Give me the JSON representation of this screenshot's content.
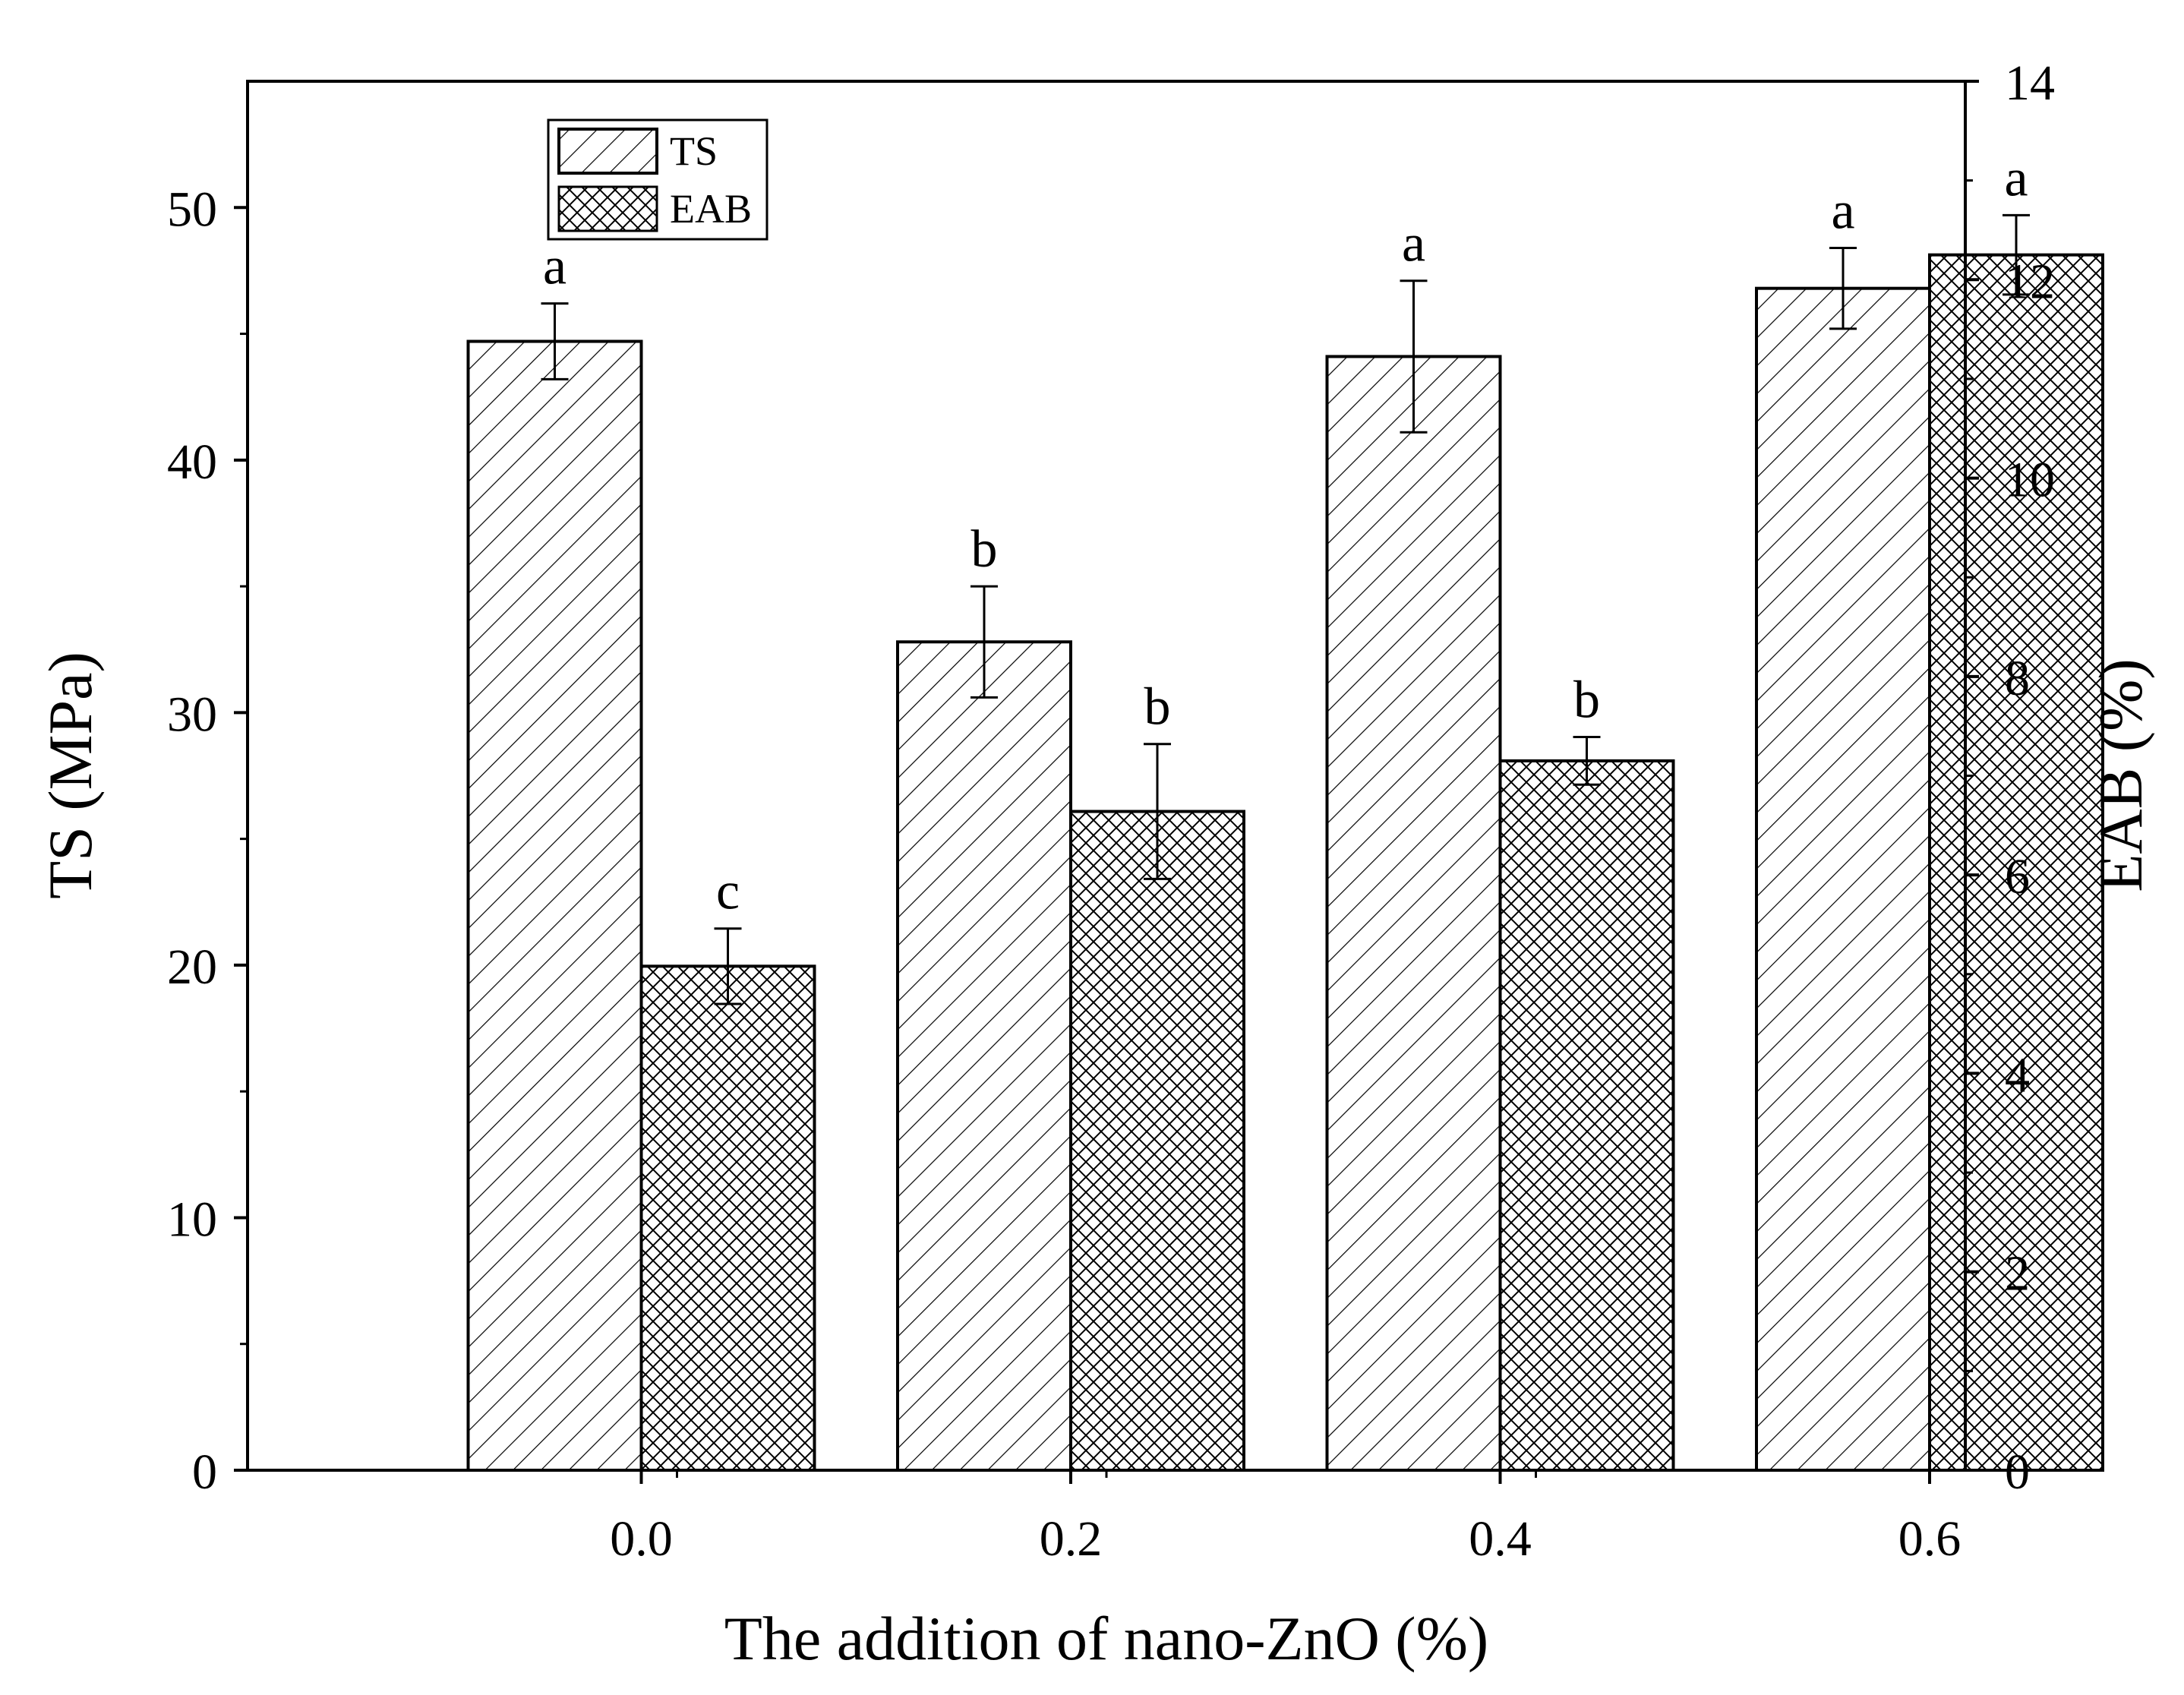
{
  "chart_data": {
    "type": "bar",
    "categories": [
      "0.0",
      "0.2",
      "0.4",
      "0.6"
    ],
    "xlabel": "The addition of nano-ZnO (%)",
    "ylabel": "TS (MPa)",
    "ylabel_right": "EAB (%)",
    "ylim": [
      0,
      55
    ],
    "ylim_right": [
      0,
      14
    ],
    "yticks": [
      "0",
      "10",
      "20",
      "30",
      "40",
      "50"
    ],
    "yticks_right": [
      "0",
      "2",
      "4",
      "6",
      "8",
      "10",
      "12",
      "14"
    ],
    "legend_position": "top-left",
    "series": [
      {
        "name": "TS",
        "axis": "left",
        "pattern": "diagonal-hatch",
        "values": [
          44.7,
          32.8,
          44.1,
          46.8
        ],
        "errors": [
          1.5,
          2.2,
          3.0,
          1.6
        ],
        "letters": [
          "a",
          "b",
          "a",
          "a"
        ]
      },
      {
        "name": "EAB",
        "axis": "right",
        "pattern": "cross-hatch",
        "values": [
          5.08,
          6.64,
          7.15,
          12.25
        ],
        "errors": [
          0.38,
          0.68,
          0.24,
          0.4
        ],
        "letters": [
          "c",
          "b",
          "b",
          "a"
        ]
      }
    ]
  },
  "colors": {
    "ink": "#000000",
    "background": "#ffffff"
  }
}
